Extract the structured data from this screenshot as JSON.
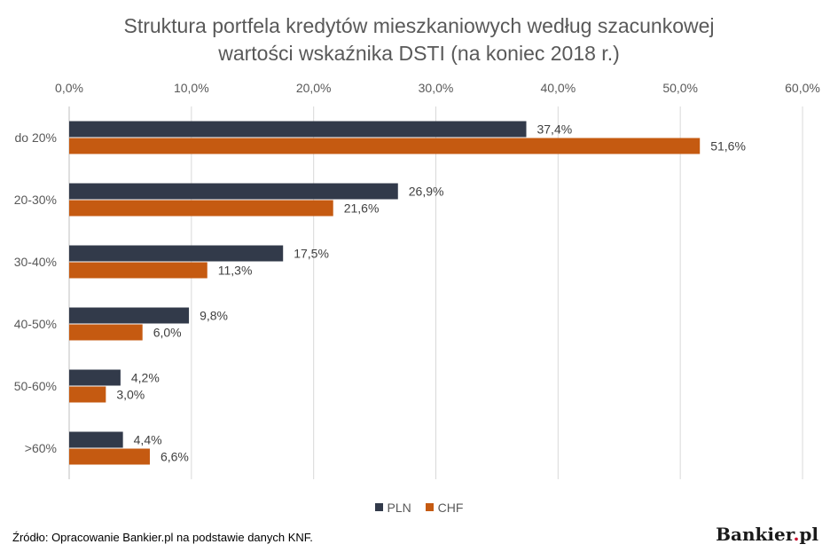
{
  "chart_data": {
    "type": "bar",
    "orientation": "horizontal",
    "title": "Struktura portfela kredytów mieszkaniowych według szacunkowej wartości wskaźnika DSTI (na koniec 2018 r.)",
    "title_lines": [
      "Struktura portfela kredytów mieszkaniowych według szacunkowej",
      "wartości wskaźnika DSTI (na koniec 2018 r.)"
    ],
    "categories": [
      "do 20%",
      "20-30%",
      "30-40%",
      "40-50%",
      "50-60%",
      ">60%"
    ],
    "series": [
      {
        "name": "PLN",
        "color": "#323a4a",
        "values": [
          37.4,
          26.9,
          17.5,
          9.8,
          4.2,
          4.4
        ],
        "labels": [
          "37,4%",
          "26,9%",
          "17,5%",
          "9,8%",
          "4,2%",
          "4,4%"
        ]
      },
      {
        "name": "CHF",
        "color": "#c55a11",
        "values": [
          51.6,
          21.6,
          11.3,
          6.0,
          3.0,
          6.6
        ],
        "labels": [
          "51,6%",
          "21,6%",
          "11,3%",
          "6,0%",
          "3,0%",
          "6,6%"
        ]
      }
    ],
    "xlim": [
      0,
      60
    ],
    "x_ticks": [
      0,
      10,
      20,
      30,
      40,
      50,
      60
    ],
    "x_tick_labels": [
      "0,0%",
      "10,0%",
      "20,0%",
      "30,0%",
      "40,0%",
      "50,0%",
      "60,0%"
    ],
    "x_axis_position": "top",
    "grid": true,
    "legend_position": "bottom"
  },
  "source_text": "Źródło: Opracowanie Bankier.pl na podstawie danych KNF.",
  "brand": {
    "name": "Bankier",
    "dot": ".",
    "suffix": "pl"
  },
  "colors": {
    "text": "#595959",
    "grid": "#d9d9d9"
  }
}
